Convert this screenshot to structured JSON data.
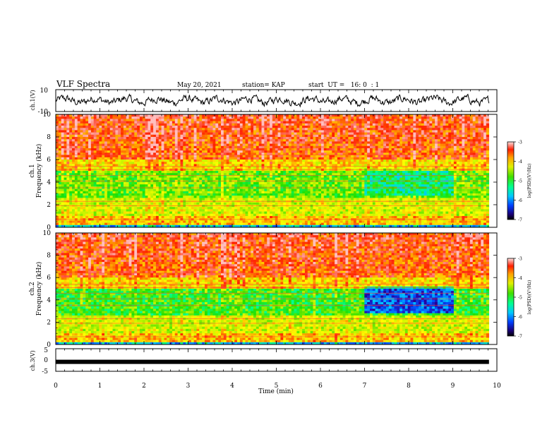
{
  "header": {
    "title": "VLF Spectra",
    "date": "May 20, 2021",
    "station": "station= KAP",
    "start": "start  UT =   16: 0  : 1"
  },
  "chart_data": [
    {
      "id": "ch1_waveform",
      "type": "line",
      "ylabel": "ch.1(V)",
      "ylim": [
        -10,
        10
      ],
      "yticks": [
        "10",
        "-10"
      ],
      "xlim": [
        0,
        10
      ],
      "x_end": 9.82,
      "baseline": 0,
      "amplitude": 4.5,
      "color": "#000000"
    },
    {
      "id": "ch1_spectrogram",
      "type": "heatmap",
      "ylabel": "ch.1\nFrequency (kHz)",
      "ylim": [
        0,
        10
      ],
      "yticks": [
        "0",
        "2",
        "4",
        "6",
        "8",
        "10"
      ],
      "xlim": [
        0,
        10
      ],
      "x_end": 9.82,
      "colorbar": {
        "label": "log(PSD)(V²/Hz)",
        "range": [
          -7,
          -3
        ],
        "ticks": [
          "-3",
          "-4",
          "-5",
          "-6",
          "-7"
        ]
      }
    },
    {
      "id": "ch2_spectrogram",
      "type": "heatmap",
      "ylabel": "ch.2\nFrequency (kHz)",
      "ylim": [
        0,
        10
      ],
      "yticks": [
        "0",
        "2",
        "4",
        "6",
        "8",
        "10"
      ],
      "xlim": [
        0,
        10
      ],
      "x_end": 9.82,
      "colorbar": {
        "label": "log(PSD)(V²/Hz)",
        "range": [
          -7,
          -3
        ],
        "ticks": [
          "-3",
          "-4",
          "-5",
          "-6",
          "-7"
        ]
      }
    },
    {
      "id": "ch3_signal",
      "type": "line",
      "ylabel": "ch.3(V)",
      "ylim": [
        -5,
        5
      ],
      "yticks": [
        "5",
        "0",
        "-5"
      ],
      "xlim": [
        0,
        10
      ],
      "x_end": 9.82,
      "level": -0.8,
      "color": "#000000"
    }
  ],
  "xaxis": {
    "label": "Time (min)",
    "ticks": [
      "0",
      "1",
      "2",
      "3",
      "4",
      "5",
      "6",
      "7",
      "8",
      "9",
      "10"
    ]
  },
  "colormap": [
    "#000000",
    "#2800a0",
    "#0050ff",
    "#00c8ff",
    "#00ff90",
    "#20e000",
    "#b0f000",
    "#ffff00",
    "#ffa000",
    "#ff2000",
    "#ffc0c0"
  ]
}
